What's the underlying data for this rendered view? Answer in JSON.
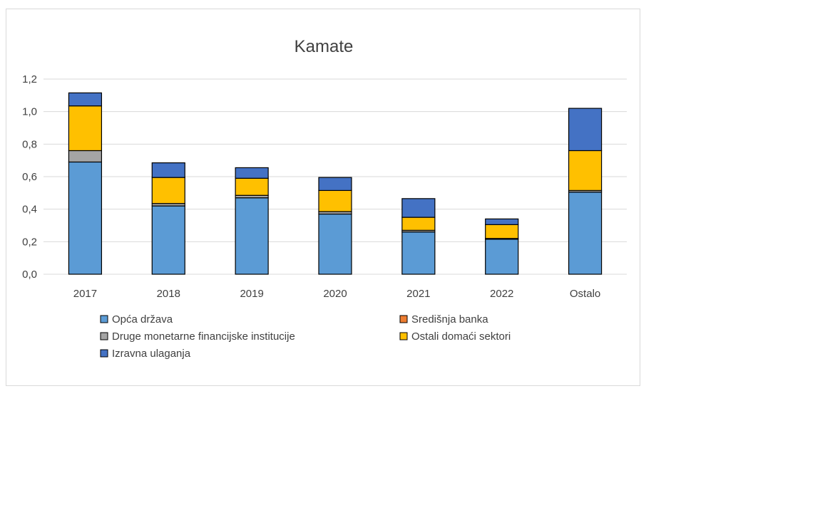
{
  "chart_data": {
    "type": "bar",
    "stacked": true,
    "title": "Kamate",
    "categories": [
      "2017",
      "2018",
      "2019",
      "2020",
      "2021",
      "2022",
      "Ostalo"
    ],
    "ylim": [
      0,
      1.2
    ],
    "yticks": [
      "0,0",
      "0,2",
      "0,4",
      "0,6",
      "0,8",
      "1,0",
      "1,2"
    ],
    "grid": true,
    "legend_position": "bottom",
    "series": [
      {
        "name": "Opća država",
        "color": "#5B9BD5",
        "values": [
          0.69,
          0.42,
          0.47,
          0.37,
          0.26,
          0.215,
          0.505
        ]
      },
      {
        "name": "Središnja banka",
        "color": "#ED7D31",
        "values": [
          0,
          0,
          0,
          0,
          0,
          0,
          0
        ]
      },
      {
        "name": "Druge monetarne financijske institucije",
        "color": "#A5A5A5",
        "values": [
          0.07,
          0.015,
          0.015,
          0.015,
          0.01,
          0.005,
          0.01
        ]
      },
      {
        "name": "Ostali domaći sektori",
        "color": "#FFC000",
        "values": [
          0.275,
          0.16,
          0.105,
          0.13,
          0.08,
          0.085,
          0.245
        ]
      },
      {
        "name": "Izravna ulaganja",
        "color": "#4472C4",
        "values": [
          0.08,
          0.09,
          0.065,
          0.08,
          0.115,
          0.035,
          0.26
        ]
      }
    ]
  }
}
